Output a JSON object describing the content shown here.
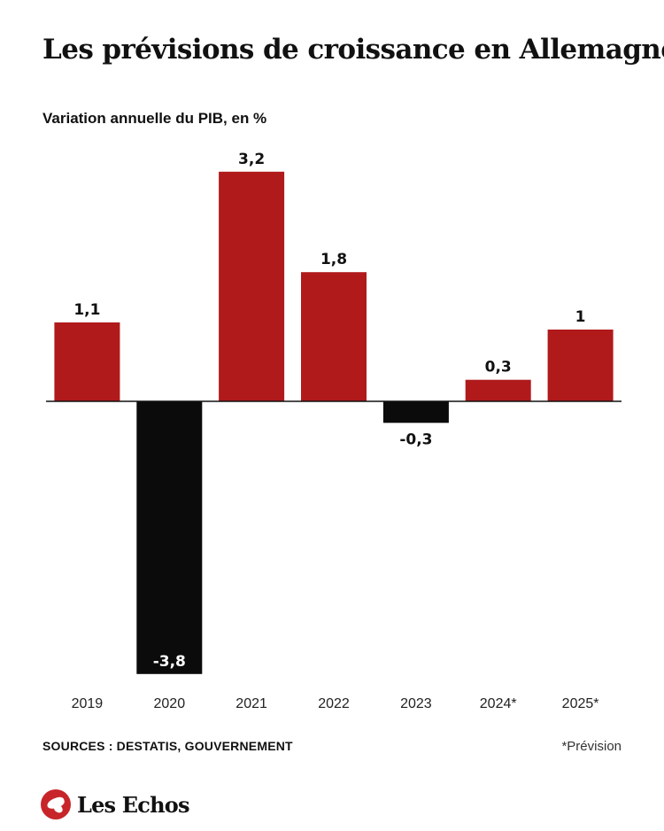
{
  "header": {
    "title": "Les prévisions de croissance en Allemagne",
    "subtitle": "Variation annuelle du PIB, en %"
  },
  "chart_data": {
    "type": "bar",
    "categories": [
      "2019",
      "2020",
      "2021",
      "2022",
      "2023",
      "2024*",
      "2025*"
    ],
    "values": [
      1.1,
      -3.8,
      3.2,
      1.8,
      -0.3,
      0.3,
      1
    ],
    "value_labels": [
      "1,1",
      "-3,8",
      "3,2",
      "1,8",
      "-0,3",
      "0,3",
      "1"
    ],
    "title": "Les prévisions de croissance en Allemagne",
    "subtitle": "Variation annuelle du PIB, en %",
    "ylim": [
      -3.8,
      3.2
    ],
    "grid": false,
    "legend": "none",
    "colors": {
      "positive": "#b01a1b",
      "negative": "#0b0b0b",
      "axis": "#111111"
    }
  },
  "footer": {
    "sources": "SOURCES : DESTATIS, GOUVERNEMENT",
    "note": "*Prévision",
    "logo_text": "Les Echos",
    "logo_icon": "les-echos-bird-icon"
  }
}
